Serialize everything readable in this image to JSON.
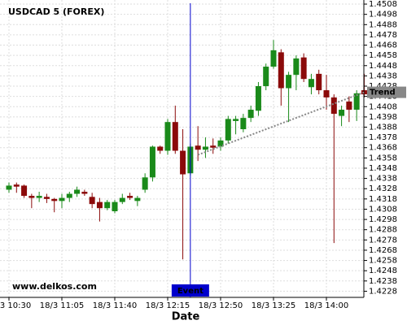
{
  "chart_data": {
    "type": "candlestick",
    "title": "USDCAD 5 (FOREX)",
    "x_label": "Date",
    "watermark": "www.delkos.com",
    "categories": [
      "18/3 10:30",
      null,
      null,
      null,
      null,
      null,
      null,
      "18/3 11:05",
      null,
      null,
      null,
      null,
      null,
      null,
      "18/3 11:40",
      null,
      null,
      null,
      null,
      null,
      null,
      "18/3 12:15",
      null,
      null,
      null,
      null,
      null,
      null,
      "18/3 12:50",
      null,
      null,
      null,
      null,
      null,
      null,
      "18/3 13:25",
      null,
      null,
      null,
      null,
      null,
      null,
      "18/3 14:00",
      null,
      null,
      null,
      null,
      null
    ],
    "open": [
      1.4327,
      1.4332,
      1.4331,
      1.4321,
      1.4319,
      1.432,
      1.4318,
      1.4316,
      1.4319,
      1.4323,
      1.4325,
      1.432,
      1.4315,
      1.4309,
      1.4306,
      1.4315,
      1.4321,
      1.4316,
      1.4327,
      1.4339,
      1.4369,
      1.4365,
      1.4393,
      1.4365,
      1.4343,
      1.437,
      1.4366,
      1.437,
      1.4369,
      1.4375,
      1.4394,
      1.4386,
      1.4397,
      1.4404,
      1.4428,
      1.4447,
      1.4461,
      1.4426,
      1.4439,
      1.4456,
      1.4427,
      1.444,
      1.4424,
      1.4417,
      1.4399,
      1.4413,
      1.4405,
      1.4424
    ],
    "high": [
      1.4334,
      1.4334,
      1.4332,
      1.4323,
      1.4325,
      1.4323,
      1.4319,
      1.4323,
      1.4325,
      1.433,
      1.4327,
      1.4324,
      1.4319,
      1.4317,
      1.4317,
      1.4323,
      1.4324,
      1.4321,
      1.4343,
      1.437,
      1.437,
      1.4396,
      1.4409,
      1.4386,
      1.4372,
      1.4389,
      1.4378,
      1.4377,
      1.4378,
      1.4399,
      1.4399,
      1.4401,
      1.4409,
      1.4432,
      1.445,
      1.4473,
      1.4464,
      1.4442,
      1.4458,
      1.446,
      1.444,
      1.4444,
      1.4439,
      1.442,
      1.4409,
      1.4418,
      1.4424,
      1.444
    ],
    "low": [
      1.4324,
      1.4324,
      1.4319,
      1.4309,
      1.4315,
      1.4314,
      1.4305,
      1.4309,
      1.4315,
      1.432,
      1.4321,
      1.4309,
      1.4296,
      1.4307,
      1.4304,
      1.4313,
      1.4317,
      1.4311,
      1.4324,
      1.4335,
      1.4362,
      1.4361,
      1.4362,
      1.4259,
      1.4341,
      1.4355,
      1.4358,
      1.4362,
      1.4365,
      1.4372,
      1.4381,
      1.4383,
      1.4393,
      1.4399,
      1.4424,
      1.4445,
      1.4409,
      1.4393,
      1.4424,
      1.4432,
      1.442,
      1.442,
      1.4405,
      1.4275,
      1.4389,
      1.4393,
      1.4394,
      1.4417
    ],
    "close": [
      1.4331,
      1.433,
      1.4321,
      1.4319,
      1.4321,
      1.4318,
      1.4316,
      1.4319,
      1.4323,
      1.4327,
      1.4323,
      1.4313,
      1.4309,
      1.4315,
      1.4315,
      1.4319,
      1.4319,
      1.4319,
      1.4339,
      1.4369,
      1.4365,
      1.4393,
      1.4365,
      1.4342,
      1.4369,
      1.4366,
      1.4369,
      1.4368,
      1.4375,
      1.4396,
      1.4396,
      1.4397,
      1.4405,
      1.4428,
      1.4447,
      1.4463,
      1.4426,
      1.4439,
      1.4455,
      1.4435,
      1.4435,
      1.4424,
      1.4417,
      1.4401,
      1.4405,
      1.4405,
      1.4421,
      1.442
    ],
    "up_color": "#1a8a1a",
    "down_color": "#8b0a0a",
    "ylim": [
      1.4222,
      1.4512
    ],
    "yticks": [
      1.4508,
      1.4498,
      1.4488,
      1.4478,
      1.4468,
      1.4458,
      1.4448,
      1.4438,
      1.4428,
      1.4418,
      1.4408,
      1.4398,
      1.4388,
      1.4378,
      1.4368,
      1.4358,
      1.4348,
      1.4338,
      1.4328,
      1.4318,
      1.4308,
      1.4298,
      1.4288,
      1.4278,
      1.4268,
      1.4258,
      1.4248,
      1.4238,
      1.4228
    ],
    "grid": true,
    "event": {
      "label": "Event",
      "index": 24,
      "color": "#0000cc"
    },
    "trend": {
      "label": "Trend",
      "start_index": 25,
      "start_value": 1.4361,
      "end_index": 47,
      "end_value": 1.4422,
      "color": "#888888"
    }
  }
}
